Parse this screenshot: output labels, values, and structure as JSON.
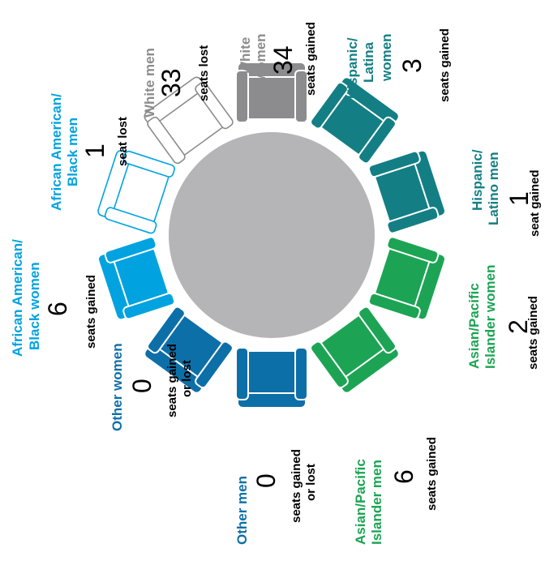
{
  "colors": {
    "table": "#b5b5b8",
    "white_men": "#8c8c8e",
    "white_women": "#8c8c8e",
    "hispanic": "#137f84",
    "asian": "#1ca454",
    "other": "#0d6fa8",
    "african_american": "#00a3e0",
    "text_dark": "#000000"
  },
  "seats": [
    {
      "group": "White men",
      "value": "33",
      "caption": "seats lost",
      "color": "#8c8c8e",
      "style": "outline"
    },
    {
      "group": "White women",
      "value": "34",
      "caption": "seats gained",
      "color": "#8c8c8e",
      "style": "filled"
    },
    {
      "group": "Hispanic/ Latina women",
      "value": "3",
      "caption": "seats gained",
      "color": "#137f84",
      "style": "filled"
    },
    {
      "group": "Hispanic/ Latino men",
      "value": "1",
      "caption": "seat gained",
      "color": "#137f84",
      "style": "filled"
    },
    {
      "group": "Asian/Pacific Islander women",
      "value": "2",
      "caption": "seats gained",
      "color": "#1ca454",
      "style": "filled"
    },
    {
      "group": "Asian/Pacific Islander men",
      "value": "6",
      "caption": "seats gained",
      "color": "#1ca454",
      "style": "filled"
    },
    {
      "group": "Other men",
      "value": "0",
      "caption": "seats gained or lost",
      "color": "#0d6fa8",
      "style": "filled"
    },
    {
      "group": "Other women",
      "value": "0",
      "caption": "seats gained or lost",
      "color": "#0d6fa8",
      "style": "filled"
    },
    {
      "group": "African American/ Black women",
      "value": "6",
      "caption": "seats gained",
      "color": "#00a3e0",
      "style": "filled"
    },
    {
      "group": "African American/ Black men",
      "value": "1",
      "caption": "seat lost",
      "color": "#00a3e0",
      "style": "outline"
    }
  ],
  "labels": {
    "white_men": {
      "l1": "White men",
      "num": "33",
      "c1": "seats lost"
    },
    "white_women": {
      "l1": "White",
      "l2": "women",
      "num": "34",
      "c1": "seats gained"
    },
    "hisp_women": {
      "l1": "Hispanic/",
      "l2": "Latina",
      "l3": "women",
      "num": "3",
      "c1": "seats gained"
    },
    "hisp_men": {
      "l1": "Hispanic/",
      "l2": "Latino men",
      "num": "1",
      "c1": "seat gained"
    },
    "asian_women": {
      "l1": "Asian/Pacific",
      "l2": "Islander women",
      "num": "2",
      "c1": "seats gained"
    },
    "asian_men": {
      "l1": "Asian/Pacific",
      "l2": "Islander men",
      "num": "6",
      "c1": "seats gained"
    },
    "other_men": {
      "l1": "Other men",
      "num": "0",
      "c1": "seats gained",
      "c2": "or lost"
    },
    "other_women": {
      "l1": "Other women",
      "num": "0",
      "c1": "seats gained",
      "c2": "or lost"
    },
    "aa_women": {
      "l1": "African American/",
      "l2": "Black women",
      "num": "6",
      "c1": "seats gained"
    },
    "aa_men": {
      "l1": "African American/",
      "l2": "Black men",
      "num": "1",
      "c1": "seat lost"
    }
  }
}
